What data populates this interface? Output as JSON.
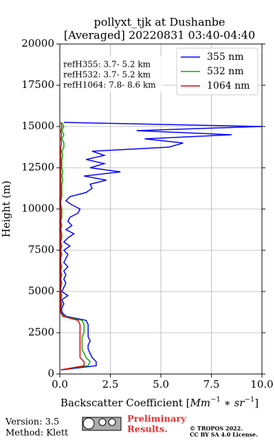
{
  "chart_data": {
    "type": "line",
    "title": [
      "pollyxt_tjk at Dushanbe",
      "[Averaged] 20220831 03:40-04:40"
    ],
    "xlabel": [
      {
        "text": "Backscatter Coefficient ["
      },
      {
        "text": "Mm"
      },
      {
        "text": "−1",
        "sup": true
      },
      {
        "text": " ∗ sr"
      },
      {
        "text": "−1",
        "sup": true
      },
      {
        "text": "]"
      }
    ],
    "ylabel": "Height (m)",
    "xlim": [
      0,
      10
    ],
    "ylim": [
      0,
      20000
    ],
    "xticks": [
      {
        "value": 0,
        "label": "0.0"
      },
      2.5,
      {
        "value": 5,
        "label": "5.0"
      },
      7.5,
      {
        "value": 10,
        "label": "10.0"
      }
    ],
    "yticks": [
      0,
      2500,
      5000,
      7500,
      10000,
      12500,
      15000,
      17500,
      20000
    ],
    "grid": true,
    "legend_position": "upper-right",
    "y": [
      250,
      500,
      750,
      1000,
      1250,
      1500,
      1750,
      2000,
      2250,
      2500,
      2750,
      3000,
      3250,
      3500,
      3750,
      4000,
      4250,
      4500,
      4750,
      5000,
      5250,
      5500,
      5750,
      6000,
      6250,
      6500,
      6750,
      7000,
      7250,
      7500,
      7750,
      8000,
      8250,
      8500,
      8750,
      9000,
      9250,
      9500,
      9750,
      10000,
      10250,
      10500,
      10750,
      11000,
      11250,
      11500,
      11750,
      12000,
      12250,
      12500,
      12750,
      13000,
      13250,
      13500,
      13750,
      14000,
      14250,
      14500,
      14750,
      15000,
      15250
    ],
    "series": [
      {
        "name": "355 nm",
        "color": "#0000ff",
        "values": [
          0.1,
          1.8,
          1.8,
          1.6,
          1.5,
          1.4,
          1.4,
          1.5,
          1.4,
          1.4,
          1.4,
          1.4,
          1.3,
          0.3,
          0.1,
          0.1,
          0.2,
          0.1,
          0.4,
          0.1,
          0.2,
          0.3,
          0.2,
          0.3,
          0.2,
          0.4,
          0.2,
          0.3,
          0.4,
          0.2,
          0.5,
          0.2,
          0.4,
          0.7,
          0.3,
          0.6,
          0.4,
          0.5,
          0.9,
          1.0,
          0.6,
          0.3,
          0.5,
          1.3,
          1.6,
          1.5,
          2.3,
          1.2,
          3.0,
          1.5,
          2.2,
          1.3,
          2.2,
          1.6,
          5.4,
          6.1,
          4.2,
          8.5,
          3.8,
          10.0,
          0.2
        ]
      },
      {
        "name": "532 nm",
        "color": "#00aa00",
        "values": [
          0.05,
          1.4,
          1.5,
          1.3,
          1.2,
          1.1,
          1.1,
          1.1,
          1.1,
          1.2,
          1.2,
          1.2,
          1.1,
          0.2,
          0.05,
          0.05,
          0.1,
          0.05,
          0.1,
          0.05,
          0.05,
          0.1,
          0.05,
          0.1,
          0.05,
          0.1,
          0.05,
          0.05,
          0.1,
          0.05,
          0.1,
          0.05,
          0.1,
          0.1,
          0.05,
          0.1,
          0.05,
          0.1,
          0.1,
          0.1,
          0.05,
          0.05,
          0.1,
          0.1,
          0.1,
          0.1,
          0.15,
          0.1,
          0.15,
          0.1,
          0.1,
          0.1,
          0.15,
          0.1,
          0.2,
          0.2,
          0.1,
          0.2,
          0.1,
          0.2,
          0.1
        ]
      },
      {
        "name": "1064 nm",
        "color": "#dd0000",
        "values": [
          0.05,
          1.2,
          1.2,
          1.0,
          1.0,
          1.0,
          1.0,
          1.0,
          1.0,
          1.0,
          1.0,
          1.0,
          0.9,
          0.15,
          0.03,
          0.03,
          0.05,
          0.03,
          0.05,
          0.03,
          0.03,
          0.05,
          0.03,
          0.05,
          0.03,
          0.05,
          0.03,
          0.03,
          0.05,
          0.03,
          0.05,
          0.03,
          0.05,
          0.05,
          0.03,
          0.05,
          0.03,
          0.05,
          0.05,
          0.05,
          0.03,
          0.03,
          0.05,
          0.05,
          0.05,
          0.05,
          0.05,
          0.05,
          0.05,
          0.05,
          0.05,
          0.05,
          0.05,
          0.05,
          0.05,
          0.08,
          0.05,
          0.08,
          0.05,
          0.1,
          0.05
        ]
      }
    ],
    "annotations": [
      "refH355:  3.7- 5.2 km",
      "refH532:  3.7- 5.2 km",
      "refH1064:  7.8- 8.6 km"
    ]
  },
  "footer": {
    "version": "Version: 3.5",
    "method": "Method: Klett",
    "preliminary": [
      "Preliminary",
      "Results."
    ],
    "copyright": [
      "© TROPOS 2022.",
      "CC BY SA 4.0 License."
    ]
  }
}
